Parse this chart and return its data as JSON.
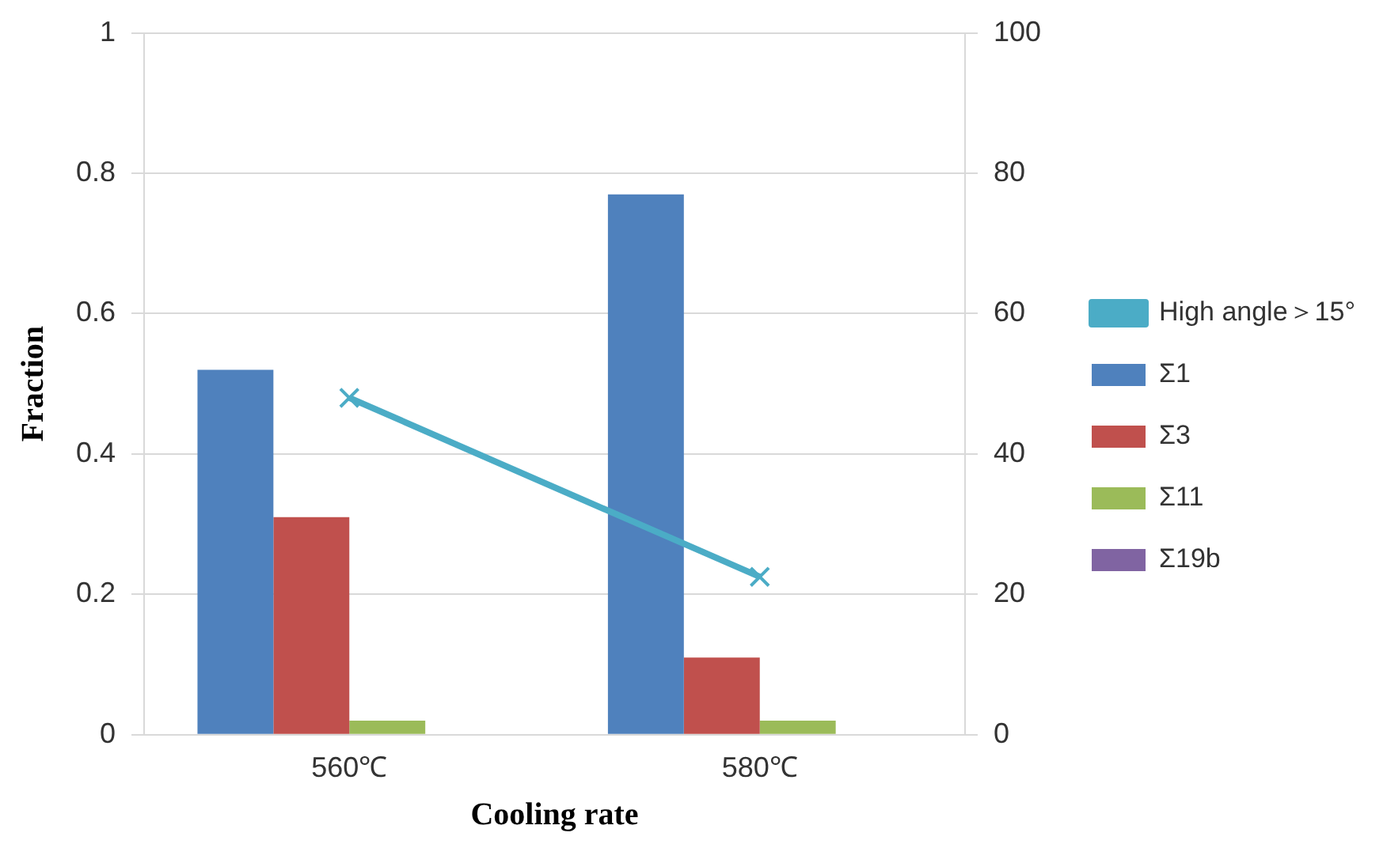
{
  "chart_data": {
    "type": "bar",
    "xlabel": "Cooling rate",
    "ylabel": "Fraction",
    "categories": [
      "560℃",
      "580℃"
    ],
    "series": [
      {
        "name": "Σ1",
        "color": "#4f81bd",
        "values": [
          0.52,
          0.77
        ]
      },
      {
        "name": "Σ3",
        "color": "#c0504d",
        "values": [
          0.31,
          0.11
        ]
      },
      {
        "name": "Σ11",
        "color": "#9bbb59",
        "values": [
          0.02,
          0.02
        ]
      },
      {
        "name": "Σ19b",
        "color": "#8064a2",
        "values": [
          0,
          0
        ]
      },
      {
        "name": "High angle＞15°",
        "color": "#4bacc6",
        "type": "line",
        "axis": "y2",
        "marker": "cross",
        "values": [
          48,
          22.5
        ]
      }
    ],
    "ylim": [
      0,
      1
    ],
    "yticks": [
      0,
      0.2,
      0.4,
      0.6,
      0.8,
      1
    ],
    "y2lim": [
      0,
      100
    ],
    "y2ticks": [
      0,
      20,
      40,
      60,
      80,
      100
    ],
    "grid": "y",
    "legend": "right"
  }
}
